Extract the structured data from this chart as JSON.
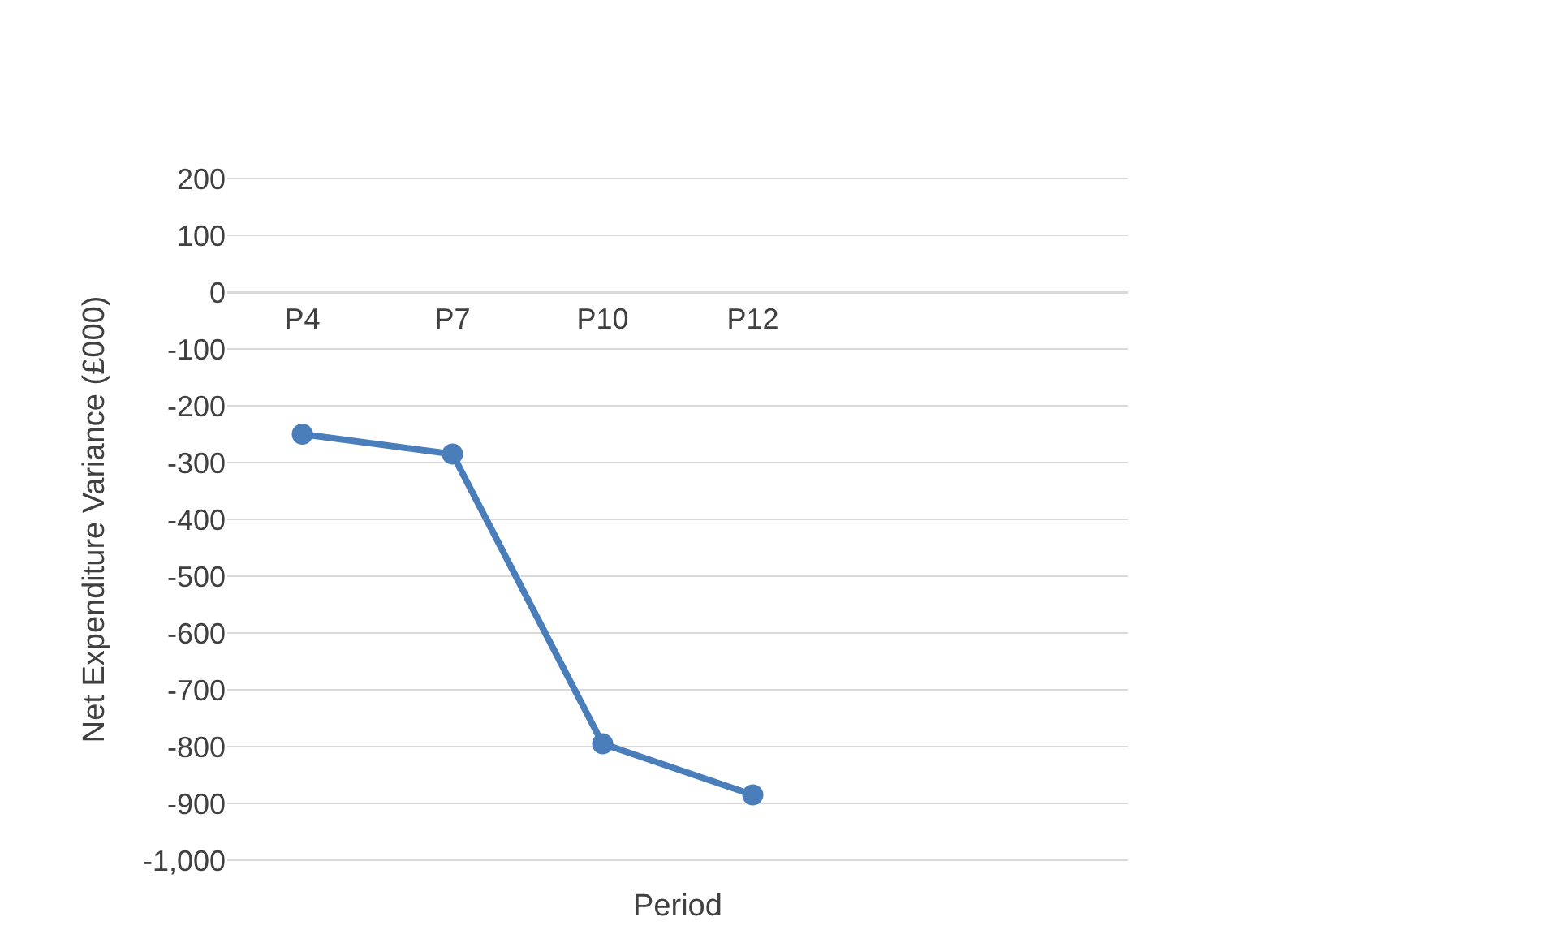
{
  "chart_data": {
    "type": "line",
    "xlabel": "Period",
    "ylabel": "Net Expenditure Variance (£000)",
    "categories": [
      "P4",
      "P7",
      "P10",
      "P12",
      null,
      null
    ],
    "series": [
      {
        "color": "#4a7ebb",
        "values": [
          -250,
          -285,
          -795,
          -885,
          null,
          null
        ]
      }
    ],
    "ylim": [
      -1000,
      200
    ],
    "yticks": [
      {
        "value": -1000,
        "label": "-1,000"
      },
      -900,
      -800,
      -700,
      -600,
      -500,
      -400,
      -300,
      -200,
      -100,
      0,
      100,
      200
    ],
    "grid": "y",
    "marker": "circle",
    "line_style": "solid"
  }
}
